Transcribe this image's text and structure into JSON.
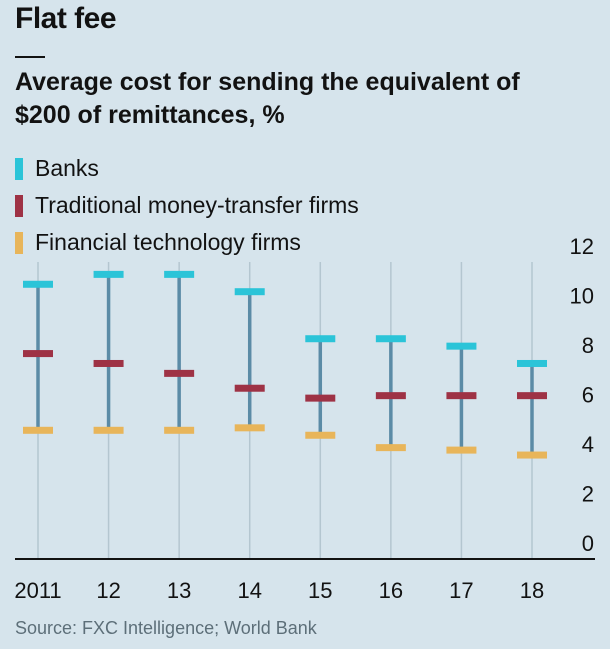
{
  "title": "Flat fee",
  "subtitle": "Average cost for sending the equivalent of $200 of remittances, %",
  "legend": [
    {
      "label": "Banks",
      "color": "#2bc4d8"
    },
    {
      "label": "Traditional money-transfer firms",
      "color": "#9e3245"
    },
    {
      "label": "Financial technology firms",
      "color": "#e8b55a"
    }
  ],
  "source": "Source: FXC Intelligence; World Bank",
  "chart_data": {
    "type": "range",
    "categories": [
      "2011",
      "12",
      "13",
      "14",
      "15",
      "16",
      "17",
      "18"
    ],
    "series": [
      {
        "name": "Banks",
        "color": "#2bc4d8",
        "values": [
          11.1,
          11.5,
          11.5,
          10.8,
          8.9,
          8.9,
          8.6,
          7.9
        ]
      },
      {
        "name": "Traditional money-transfer firms",
        "color": "#9e3245",
        "values": [
          8.3,
          7.9,
          7.5,
          6.9,
          6.5,
          6.6,
          6.6,
          6.6
        ]
      },
      {
        "name": "Financial technology firms",
        "color": "#e8b55a",
        "values": [
          5.2,
          5.2,
          5.2,
          5.3,
          5.0,
          4.5,
          4.4,
          4.2
        ]
      }
    ],
    "ylim": [
      0,
      12
    ],
    "yticks": [
      "0",
      "2",
      "4",
      "6",
      "8",
      "10",
      "12"
    ],
    "grid": "vertical",
    "connector_color": "#5b8ba6"
  }
}
